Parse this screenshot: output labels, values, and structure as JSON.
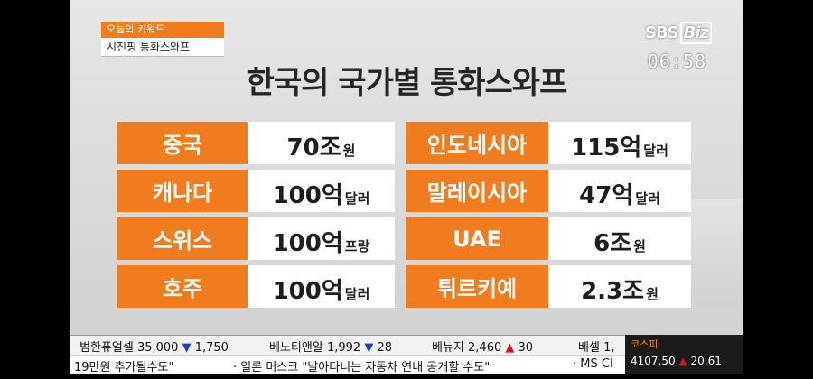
{
  "keyword": {
    "label": "오늘의 키워드",
    "topic": "시진핑 통화스와프"
  },
  "broadcaster": {
    "logo_main": "SBS",
    "logo_sub": "Biz"
  },
  "clock": "06:58",
  "title": "한국의 국가별 통화스와프",
  "left_rows": [
    {
      "country": "중국",
      "num": "70",
      "unit": "조",
      "sub": "원"
    },
    {
      "country": "캐나다",
      "num": "100",
      "unit": "억",
      "sub": "달러"
    },
    {
      "country": "스위스",
      "num": "100",
      "unit": "억",
      "sub": "프랑"
    },
    {
      "country": "호주",
      "num": "100",
      "unit": "억",
      "sub": "달러"
    }
  ],
  "right_rows": [
    {
      "country": "인도네시아",
      "num": "115",
      "unit": "억",
      "sub": "달러"
    },
    {
      "country": "말레이시아",
      "num": "47",
      "unit": "억",
      "sub": "달러"
    },
    {
      "country": "UAE",
      "num": "6",
      "unit": "조",
      "sub": "원"
    },
    {
      "country": "튀르키예",
      "num": "2.3",
      "unit": "조",
      "sub": "원"
    }
  ],
  "ticker": {
    "items": [
      {
        "name": "범한퓨얼셀",
        "price": "35,000",
        "dir": "▼",
        "change": "1,750"
      },
      {
        "name": "베노티앤알",
        "price": "1,992",
        "dir": "▼",
        "change": "28"
      },
      {
        "name": "베뉴지",
        "price": "2,460",
        "dir": "▲",
        "change": "30"
      },
      {
        "name": "베셀",
        "price": "1,",
        "dir": "",
        "change": ""
      }
    ]
  },
  "news": {
    "left": "19만원 추가될수도\"",
    "middle": "· 일론 머스크 \"날아다니는 자동차 연내 공개할 수도\"",
    "right": "· MS CI"
  },
  "kospi": {
    "label": "코스피",
    "value": "4107.50",
    "dir": "▲",
    "change": "20.61"
  },
  "colors": {
    "accent": "#f07c1f",
    "down": "#1d3fbf",
    "up": "#c8191f"
  }
}
